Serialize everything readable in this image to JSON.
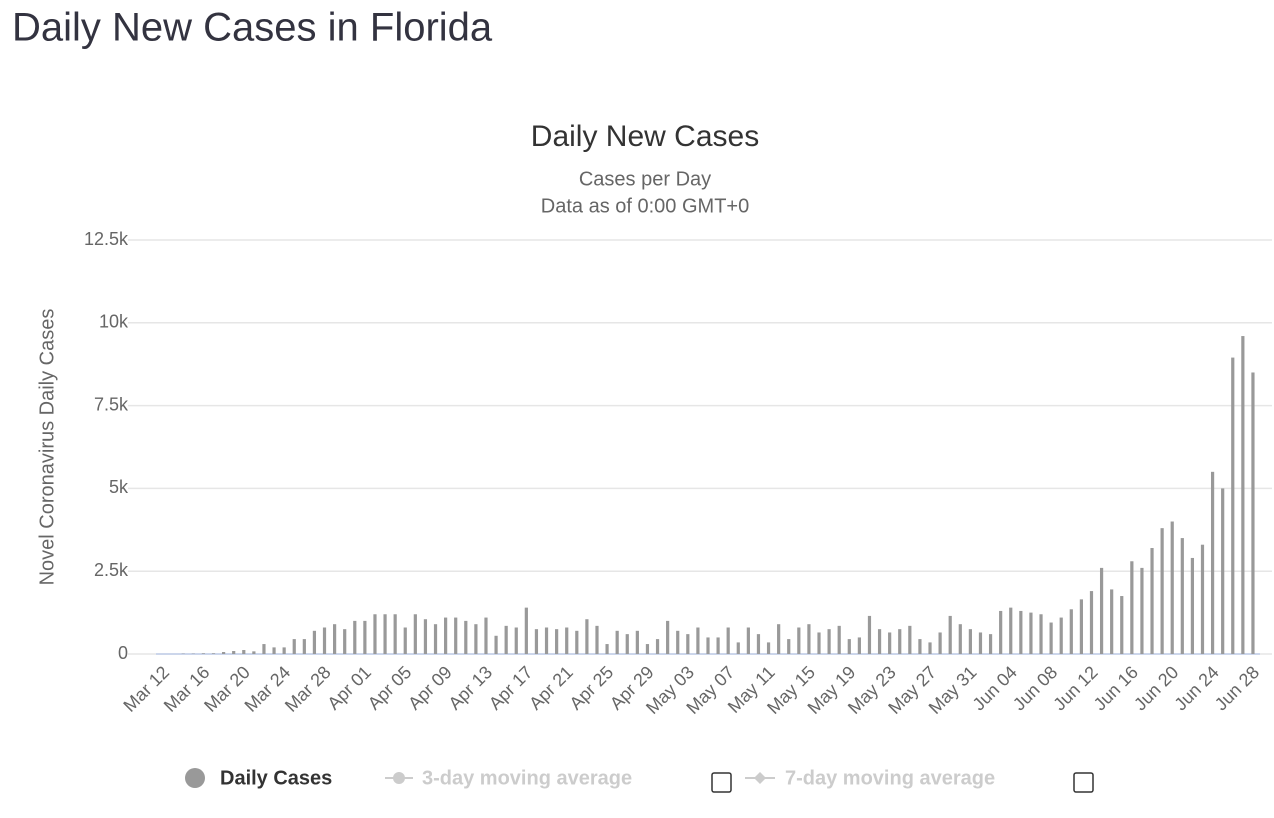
{
  "header": {
    "title": "Daily New Cases in Florida"
  },
  "chart_data": {
    "type": "bar",
    "title": "Daily New Cases",
    "subtitle": [
      "Cases per Day",
      "Data as of 0:00 GMT+0"
    ],
    "y_label": "Novel Coronavirus Daily Cases",
    "categories": [
      "Mar 12",
      null,
      null,
      null,
      "Mar 16",
      null,
      null,
      null,
      "Mar 20",
      null,
      null,
      null,
      "Mar 24",
      null,
      null,
      null,
      "Mar 28",
      null,
      null,
      null,
      "Apr 01",
      null,
      null,
      null,
      "Apr 05",
      null,
      null,
      null,
      "Apr 09",
      null,
      null,
      null,
      "Apr 13",
      null,
      null,
      null,
      "Apr 17",
      null,
      null,
      null,
      "Apr 21",
      null,
      null,
      null,
      "Apr 25",
      null,
      null,
      null,
      "Apr 29",
      null,
      null,
      null,
      "May 03",
      null,
      null,
      null,
      "May 07",
      null,
      null,
      null,
      "May 11",
      null,
      null,
      null,
      "May 15",
      null,
      null,
      null,
      "May 19",
      null,
      null,
      null,
      "May 23",
      null,
      null,
      null,
      "May 27",
      null,
      null,
      null,
      "May 31",
      null,
      null,
      null,
      "Jun 04",
      null,
      null,
      null,
      "Jun 08",
      null,
      null,
      null,
      "Jun 12",
      null,
      null,
      null,
      "Jun 16",
      null,
      null,
      null,
      "Jun 20",
      null,
      null,
      null,
      "Jun 24",
      null,
      null,
      null,
      "Jun 28"
    ],
    "series": [
      {
        "name": "Daily Cases",
        "color": "#999999",
        "values": [
          0,
          0,
          10,
          10,
          20,
          20,
          60,
          90,
          120,
          80,
          300,
          200,
          200,
          450,
          450,
          700,
          800,
          900,
          750,
          1000,
          1000,
          1200,
          1200,
          1200,
          800,
          1200,
          1050,
          900,
          1100,
          1100,
          1000,
          900,
          1100,
          550,
          850,
          800,
          1400,
          750,
          800,
          750,
          800,
          700,
          1050,
          850,
          300,
          700,
          600,
          700,
          300,
          450,
          1000,
          700,
          600,
          800,
          500,
          500,
          800,
          350,
          800,
          600,
          350,
          900,
          450,
          800,
          900,
          650,
          750,
          850,
          450,
          500,
          1150,
          750,
          650,
          750,
          850,
          450,
          350,
          650,
          1150,
          900,
          750,
          650,
          600,
          1300,
          1400,
          1300,
          1250,
          1200,
          950,
          1100,
          1350,
          1650,
          1900,
          2600,
          1950,
          1750,
          2800,
          2600,
          3200,
          3800,
          4000,
          3500,
          2900,
          3300,
          5500,
          5000,
          8950,
          9600,
          8500
        ]
      }
    ],
    "hidden_series": [
      "3-day moving average",
      "7-day moving average"
    ],
    "ylim": [
      0,
      12500
    ],
    "yticks": [
      0,
      {
        "value": 2500,
        "label": "2.5k"
      },
      {
        "value": 5000,
        "label": "5k"
      },
      {
        "value": 7500,
        "label": "7.5k"
      },
      {
        "value": 10000,
        "label": "10k"
      },
      {
        "value": 12500,
        "label": "12.5k"
      }
    ],
    "grid": true
  }
}
